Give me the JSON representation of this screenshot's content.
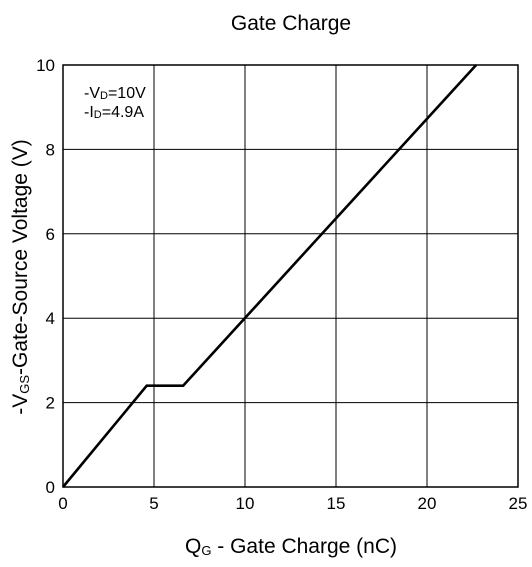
{
  "chart_data": {
    "type": "line",
    "title": "Gate Charge",
    "xlabel": {
      "main": "Q",
      "sub": "G",
      "rest": " - Gate Charge (nC)"
    },
    "ylabel": {
      "prefix": "-V",
      "sub": "GS",
      "rest": "-Gate-Source Voltage (V)"
    },
    "xlim": [
      0,
      25
    ],
    "ylim": [
      0,
      10
    ],
    "xticks": [
      0,
      5,
      10,
      15,
      20,
      25
    ],
    "yticks": [
      0,
      2,
      4,
      6,
      8,
      10
    ],
    "grid": true,
    "annotations": [
      {
        "prefix": "-V",
        "sub": "D",
        "rest": "=10V"
      },
      {
        "prefix": "-I",
        "sub": "D",
        "rest": "=4.9A"
      }
    ],
    "series": [
      {
        "color": "#000000",
        "x": [
          0,
          4.6,
          6.6,
          22.7
        ],
        "y": [
          0,
          2.4,
          2.4,
          10
        ]
      }
    ]
  }
}
